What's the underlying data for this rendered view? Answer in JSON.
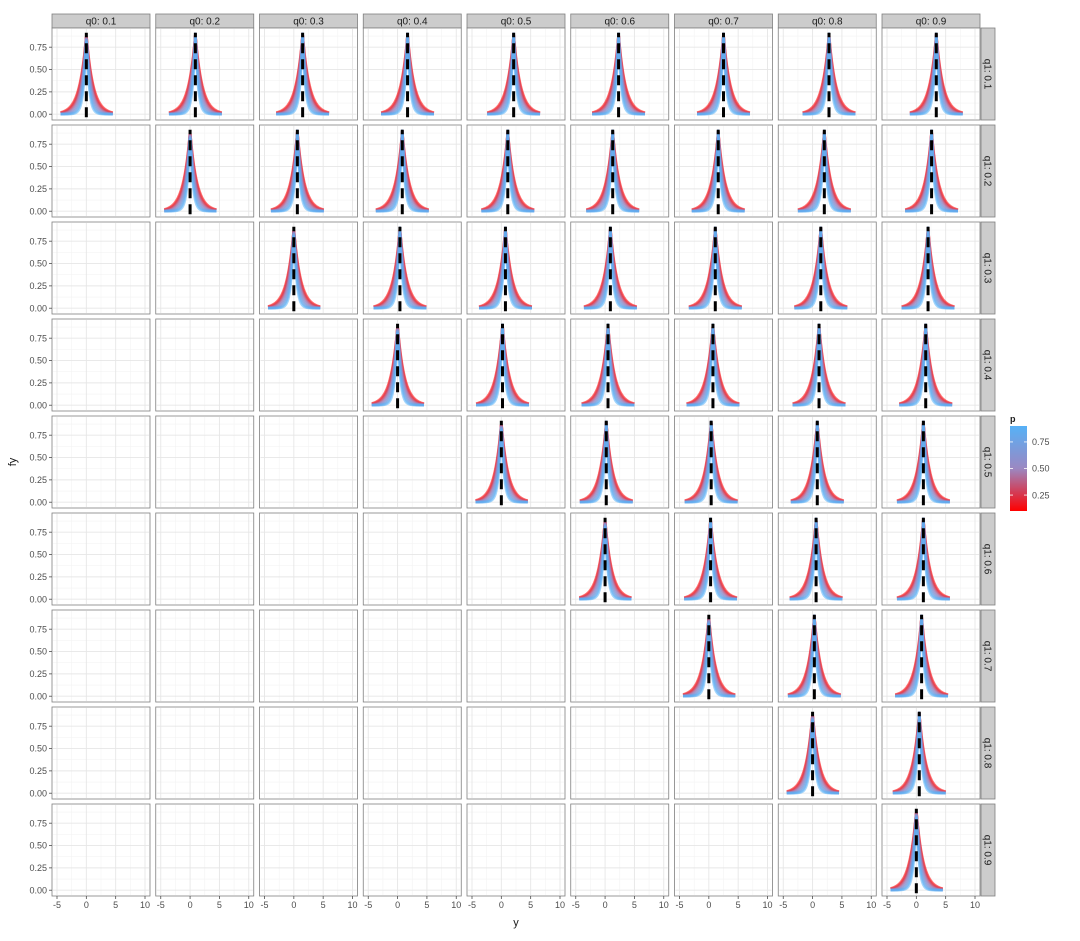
{
  "chart_data": {
    "type": "line",
    "xlabel": "y",
    "ylabel": "fy",
    "xlim": [
      -5,
      10
    ],
    "ylim": [
      0,
      0.9
    ],
    "x_ticks": [
      -5,
      0,
      5,
      10
    ],
    "y_ticks": [
      "0.00",
      "0.25",
      "0.50",
      "0.75"
    ],
    "y_tick_values": [
      0,
      0.25,
      0.5,
      0.75
    ],
    "x_tick_labels": [
      "-5",
      "0",
      "5",
      "10"
    ],
    "grid": true,
    "facet_columns": [
      "q0: 0.1",
      "q0: 0.2",
      "q0: 0.3",
      "q0: 0.4",
      "q0: 0.5",
      "q0: 0.6",
      "q0: 0.7",
      "q0: 0.8",
      "q0: 0.9"
    ],
    "facet_rows": [
      "q1: 0.1",
      "q1: 0.2",
      "q1: 0.3",
      "q1: 0.4",
      "q1: 0.5",
      "q1: 0.6",
      "q1: 0.7",
      "q1: 0.8",
      "q1: 0.9"
    ],
    "facet_centers": [
      [
        0.0,
        0.9,
        1.5,
        1.7,
        2.1,
        2.3,
        2.5,
        2.8,
        3.4
      ],
      [
        null,
        0.0,
        0.6,
        0.8,
        1.1,
        1.3,
        1.6,
        2.0,
        2.6
      ],
      [
        null,
        null,
        0.0,
        0.4,
        0.7,
        0.9,
        1.1,
        1.4,
        2.0
      ],
      [
        null,
        null,
        null,
        0.0,
        0.2,
        0.5,
        0.7,
        1.1,
        1.6
      ],
      [
        null,
        null,
        null,
        null,
        0.0,
        0.2,
        0.4,
        0.8,
        1.2
      ],
      [
        null,
        null,
        null,
        null,
        null,
        0.0,
        0.3,
        0.6,
        1.2
      ],
      [
        null,
        null,
        null,
        null,
        null,
        null,
        0.0,
        0.3,
        0.9
      ],
      [
        null,
        null,
        null,
        null,
        null,
        null,
        null,
        0.0,
        0.5
      ],
      [
        null,
        null,
        null,
        null,
        null,
        null,
        null,
        null,
        0.0
      ]
    ],
    "peak": 0.9,
    "color_scale": {
      "title": "p",
      "low_color": "#ff0000",
      "mid_color": "#9b88c2",
      "high_color": "#56b1f7",
      "range": [
        0.1,
        0.9
      ],
      "breaks": [
        0.25,
        0.5,
        0.75
      ],
      "break_labels": [
        "0.25",
        "0.50",
        "0.75"
      ],
      "legend_position": "right"
    },
    "colors": {
      "strip_bg": "#cccccc",
      "panel_border": "#7f7f7f",
      "grid_major": "#e6e6e6",
      "grid_minor": "#f3f3f3",
      "marker": "#000000"
    }
  }
}
